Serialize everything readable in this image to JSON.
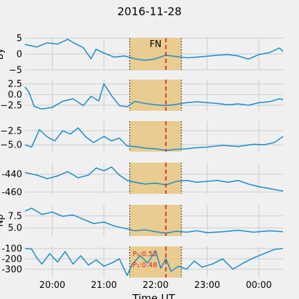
{
  "chart_data": {
    "type": "line",
    "title": "2016-11-28",
    "xlabel": "Time UT",
    "x_ticks": [
      "20:00",
      "21:00",
      "22:00",
      "23:00",
      "00:00"
    ],
    "x_range_hours": [
      19.47,
      24.47
    ],
    "event_window_hours": [
      21.5,
      22.5
    ],
    "event_label": "FN",
    "event_marker_hour": 22.2,
    "line_color": "#1f8fcf",
    "window_color": "#e8c98a",
    "marker_color": "#d62728",
    "grid": true,
    "panels": [
      {
        "ylabel": "By",
        "yticks": [
          5,
          0,
          -5
        ],
        "ytick_labels": [
          "5",
          "0",
          "−5"
        ],
        "ylim": [
          -5,
          5
        ],
        "series": [
          {
            "x": 19.47,
            "y": 3.0
          },
          {
            "x": 19.7,
            "y": 2.2
          },
          {
            "x": 19.9,
            "y": 3.5
          },
          {
            "x": 20.1,
            "y": 3.1
          },
          {
            "x": 20.3,
            "y": 4.6
          },
          {
            "x": 20.45,
            "y": 3.2
          },
          {
            "x": 20.6,
            "y": 2.0
          },
          {
            "x": 20.75,
            "y": -1.5
          },
          {
            "x": 20.85,
            "y": 1.5
          },
          {
            "x": 21.0,
            "y": 0.3
          },
          {
            "x": 21.2,
            "y": -1.0
          },
          {
            "x": 21.4,
            "y": -0.6
          },
          {
            "x": 21.6,
            "y": -1.5
          },
          {
            "x": 21.8,
            "y": -2.0
          },
          {
            "x": 22.0,
            "y": -1.5
          },
          {
            "x": 22.2,
            "y": -0.4
          },
          {
            "x": 22.4,
            "y": -0.8
          },
          {
            "x": 22.6,
            "y": -1.2
          },
          {
            "x": 22.8,
            "y": -1.0
          },
          {
            "x": 23.0,
            "y": -0.7
          },
          {
            "x": 23.2,
            "y": -0.4
          },
          {
            "x": 23.4,
            "y": -0.2
          },
          {
            "x": 23.6,
            "y": -0.6
          },
          {
            "x": 23.8,
            "y": -1.6
          },
          {
            "x": 24.0,
            "y": -0.2
          },
          {
            "x": 24.2,
            "y": 0.4
          },
          {
            "x": 24.4,
            "y": 1.9
          },
          {
            "x": 24.47,
            "y": 0.8
          }
        ]
      },
      {
        "ylabel": "",
        "yticks": [
          2.5,
          0.0,
          -2.5
        ],
        "ytick_labels": [
          "2.5",
          "0.0",
          "−2.5"
        ],
        "ylim": [
          -3.8,
          3.5
        ],
        "series": [
          {
            "x": 19.47,
            "y": 1.8
          },
          {
            "x": 19.55,
            "y": 0.5
          },
          {
            "x": 19.65,
            "y": -2.8
          },
          {
            "x": 19.8,
            "y": -3.4
          },
          {
            "x": 20.0,
            "y": -3.0
          },
          {
            "x": 20.2,
            "y": -1.6
          },
          {
            "x": 20.4,
            "y": -1.0
          },
          {
            "x": 20.6,
            "y": -2.6
          },
          {
            "x": 20.75,
            "y": -0.4
          },
          {
            "x": 20.9,
            "y": -1.5
          },
          {
            "x": 21.0,
            "y": 2.5
          },
          {
            "x": 21.15,
            "y": -0.3
          },
          {
            "x": 21.3,
            "y": -2.6
          },
          {
            "x": 21.45,
            "y": -2.9
          },
          {
            "x": 21.6,
            "y": -1.6
          },
          {
            "x": 21.8,
            "y": -2.1
          },
          {
            "x": 22.0,
            "y": -2.4
          },
          {
            "x": 22.2,
            "y": -2.6
          },
          {
            "x": 22.4,
            "y": -2.3
          },
          {
            "x": 22.6,
            "y": -1.9
          },
          {
            "x": 22.8,
            "y": -1.7
          },
          {
            "x": 23.0,
            "y": -1.9
          },
          {
            "x": 23.2,
            "y": -2.1
          },
          {
            "x": 23.4,
            "y": -2.4
          },
          {
            "x": 23.6,
            "y": -2.2
          },
          {
            "x": 23.8,
            "y": -2.5
          },
          {
            "x": 24.0,
            "y": -1.9
          },
          {
            "x": 24.2,
            "y": -1.7
          },
          {
            "x": 24.4,
            "y": -1.0
          },
          {
            "x": 24.47,
            "y": -1.2
          }
        ]
      },
      {
        "ylabel": "",
        "yticks": [
          -2.5,
          -5.0
        ],
        "ytick_labels": [
          "−2.5",
          "−5.0"
        ],
        "ylim": [
          -6.2,
          -0.8
        ],
        "series": [
          {
            "x": 19.47,
            "y": -5.0
          },
          {
            "x": 19.6,
            "y": -5.4
          },
          {
            "x": 19.75,
            "y": -2.3
          },
          {
            "x": 19.9,
            "y": -3.6
          },
          {
            "x": 20.05,
            "y": -4.3
          },
          {
            "x": 20.2,
            "y": -2.5
          },
          {
            "x": 20.35,
            "y": -3.1
          },
          {
            "x": 20.5,
            "y": -2.0
          },
          {
            "x": 20.65,
            "y": -3.6
          },
          {
            "x": 20.8,
            "y": -4.6
          },
          {
            "x": 21.0,
            "y": -3.5
          },
          {
            "x": 21.15,
            "y": -4.3
          },
          {
            "x": 21.3,
            "y": -3.8
          },
          {
            "x": 21.45,
            "y": -5.2
          },
          {
            "x": 21.6,
            "y": -5.3
          },
          {
            "x": 21.8,
            "y": -5.6
          },
          {
            "x": 22.0,
            "y": -5.7
          },
          {
            "x": 22.2,
            "y": -6.0
          },
          {
            "x": 22.4,
            "y": -5.8
          },
          {
            "x": 22.6,
            "y": -5.7
          },
          {
            "x": 22.8,
            "y": -5.5
          },
          {
            "x": 23.0,
            "y": -5.4
          },
          {
            "x": 23.3,
            "y": -5.1
          },
          {
            "x": 23.6,
            "y": -5.3
          },
          {
            "x": 23.9,
            "y": -4.9
          },
          {
            "x": 24.1,
            "y": -5.0
          },
          {
            "x": 24.3,
            "y": -4.6
          },
          {
            "x": 24.47,
            "y": -3.5
          }
        ]
      },
      {
        "ylabel": "",
        "yticks": [
          -440,
          -460
        ],
        "ytick_labels": [
          "-440",
          "-460"
        ],
        "ylim": [
          -462,
          -427
        ],
        "series": [
          {
            "x": 19.47,
            "y": -438
          },
          {
            "x": 19.7,
            "y": -441
          },
          {
            "x": 19.9,
            "y": -445
          },
          {
            "x": 20.1,
            "y": -442
          },
          {
            "x": 20.3,
            "y": -437
          },
          {
            "x": 20.5,
            "y": -444
          },
          {
            "x": 20.7,
            "y": -441
          },
          {
            "x": 20.85,
            "y": -433
          },
          {
            "x": 21.0,
            "y": -436
          },
          {
            "x": 21.15,
            "y": -432
          },
          {
            "x": 21.3,
            "y": -441
          },
          {
            "x": 21.45,
            "y": -447
          },
          {
            "x": 21.6,
            "y": -449
          },
          {
            "x": 21.8,
            "y": -451
          },
          {
            "x": 22.0,
            "y": -450
          },
          {
            "x": 22.2,
            "y": -452
          },
          {
            "x": 22.4,
            "y": -448
          },
          {
            "x": 22.6,
            "y": -447
          },
          {
            "x": 22.8,
            "y": -449
          },
          {
            "x": 23.0,
            "y": -448
          },
          {
            "x": 23.2,
            "y": -447
          },
          {
            "x": 23.4,
            "y": -449
          },
          {
            "x": 23.6,
            "y": -447
          },
          {
            "x": 23.8,
            "y": -451
          },
          {
            "x": 24.0,
            "y": -454
          },
          {
            "x": 24.2,
            "y": -456
          },
          {
            "x": 24.47,
            "y": -459
          }
        ]
      },
      {
        "ylabel": "Np",
        "yticks": [
          7.5,
          5.0
        ],
        "ytick_labels": [
          "7.5",
          "5.0"
        ],
        "ylim": [
          3.3,
          9.8
        ],
        "series": [
          {
            "x": 19.47,
            "y": 8.5
          },
          {
            "x": 19.6,
            "y": 9.1
          },
          {
            "x": 19.8,
            "y": 7.8
          },
          {
            "x": 20.0,
            "y": 8.3
          },
          {
            "x": 20.2,
            "y": 7.4
          },
          {
            "x": 20.4,
            "y": 7.7
          },
          {
            "x": 20.6,
            "y": 6.8
          },
          {
            "x": 20.8,
            "y": 5.9
          },
          {
            "x": 21.0,
            "y": 6.2
          },
          {
            "x": 21.2,
            "y": 5.4
          },
          {
            "x": 21.4,
            "y": 4.9
          },
          {
            "x": 21.6,
            "y": 4.4
          },
          {
            "x": 21.8,
            "y": 4.6
          },
          {
            "x": 22.0,
            "y": 4.2
          },
          {
            "x": 22.2,
            "y": 3.9
          },
          {
            "x": 22.4,
            "y": 4.3
          },
          {
            "x": 22.6,
            "y": 4.1
          },
          {
            "x": 22.8,
            "y": 4.4
          },
          {
            "x": 23.0,
            "y": 4.0
          },
          {
            "x": 23.3,
            "y": 4.2
          },
          {
            "x": 23.6,
            "y": 4.5
          },
          {
            "x": 23.9,
            "y": 4.1
          },
          {
            "x": 24.2,
            "y": 4.4
          },
          {
            "x": 24.47,
            "y": 4.2
          }
        ]
      },
      {
        "ylabel": "",
        "yticks": [
          -100,
          -200,
          -300
        ],
        "ytick_labels": [
          "-100",
          "-200",
          "-300"
        ],
        "ylim": [
          -380,
          -80
        ],
        "annotations": [
          "P₀:0.52",
          "P₁:0.48"
        ],
        "series": [
          {
            "x": 19.47,
            "y": -100
          },
          {
            "x": 19.6,
            "y": -105
          },
          {
            "x": 19.7,
            "y": -190
          },
          {
            "x": 19.8,
            "y": -250
          },
          {
            "x": 19.95,
            "y": -150
          },
          {
            "x": 20.1,
            "y": -230
          },
          {
            "x": 20.25,
            "y": -130
          },
          {
            "x": 20.4,
            "y": -250
          },
          {
            "x": 20.55,
            "y": -170
          },
          {
            "x": 20.7,
            "y": -260
          },
          {
            "x": 20.85,
            "y": -210
          },
          {
            "x": 21.0,
            "y": -270
          },
          {
            "x": 21.15,
            "y": -240
          },
          {
            "x": 21.3,
            "y": -200
          },
          {
            "x": 21.45,
            "y": -360
          },
          {
            "x": 21.55,
            "y": -250
          },
          {
            "x": 21.7,
            "y": -170
          },
          {
            "x": 21.85,
            "y": -240
          },
          {
            "x": 22.0,
            "y": -120
          },
          {
            "x": 22.1,
            "y": -290
          },
          {
            "x": 22.2,
            "y": -200
          },
          {
            "x": 22.3,
            "y": -320
          },
          {
            "x": 22.45,
            "y": -270
          },
          {
            "x": 22.6,
            "y": -300
          },
          {
            "x": 22.75,
            "y": -220
          },
          {
            "x": 22.9,
            "y": -280
          },
          {
            "x": 23.1,
            "y": -250
          },
          {
            "x": 23.3,
            "y": -200
          },
          {
            "x": 23.5,
            "y": -300
          },
          {
            "x": 23.7,
            "y": -240
          },
          {
            "x": 23.9,
            "y": -190
          },
          {
            "x": 24.1,
            "y": -150
          },
          {
            "x": 24.3,
            "y": -110
          },
          {
            "x": 24.47,
            "y": -100
          }
        ]
      }
    ]
  }
}
